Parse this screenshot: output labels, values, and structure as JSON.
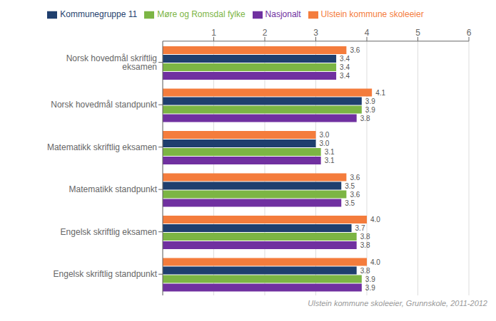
{
  "chart_data": {
    "type": "bar",
    "orientation": "horizontal",
    "categories": [
      "Norsk hovedmål skriftlig eksamen",
      "Norsk hovedmål standpunkt",
      "Matematikk skriftlig eksamen",
      "Matematikk standpunkt",
      "Engelsk skriftlig eksamen",
      "Engelsk skriftlig standpunkt"
    ],
    "series": [
      {
        "name": "Ulstein kommune skoleeier",
        "color": "#F47C3C",
        "values": [
          3.6,
          4.1,
          3.0,
          3.6,
          4.0,
          4.0
        ],
        "value_labels": [
          "3.6",
          "4.1",
          "3.0",
          "3.6",
          "4.0",
          "4.0"
        ]
      },
      {
        "name": "Kommunegruppe 11",
        "color": "#1F3F6E",
        "values": [
          3.4,
          3.9,
          3.0,
          3.5,
          3.7,
          3.8
        ],
        "value_labels": [
          "3.4",
          "3.9",
          "3.0",
          "3.5",
          "3.7",
          "3.8"
        ]
      },
      {
        "name": "Møre og Romsdal fylke",
        "color": "#7CB544",
        "values": [
          3.4,
          3.9,
          3.1,
          3.6,
          3.8,
          3.9
        ],
        "value_labels": [
          "3.4",
          "3.9",
          "3.1",
          "3.6",
          "3.8",
          "3.9"
        ]
      },
      {
        "name": "Nasjonalt",
        "color": "#7030A0",
        "values": [
          3.4,
          3.8,
          3.1,
          3.5,
          3.8,
          3.9
        ],
        "value_labels": [
          "3.4",
          "3.8",
          "3.1",
          "3.5",
          "3.8",
          "3.9"
        ]
      }
    ],
    "xlim": [
      0,
      6
    ],
    "xticks": [
      1,
      2,
      3,
      4,
      5,
      6
    ],
    "grid": true,
    "legend": "top",
    "data_labels": true,
    "annotations": [
      "Ulstein kommune skoleeier, Grunnskole, 2011-2012"
    ]
  }
}
